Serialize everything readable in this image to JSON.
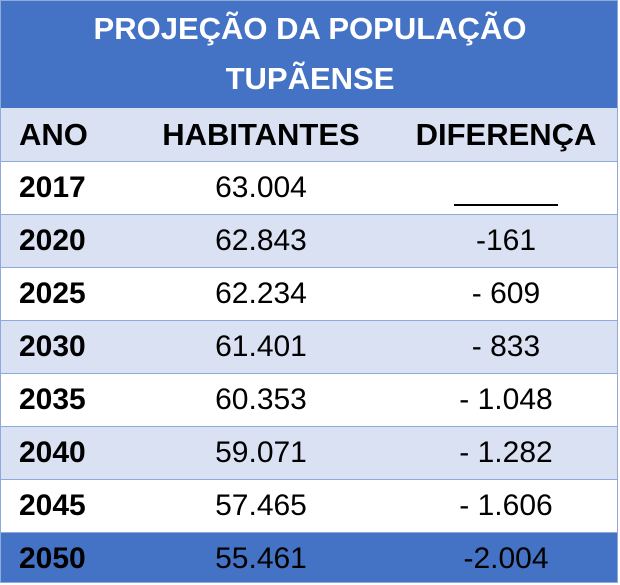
{
  "title": {
    "line1": "PROJEÇÃO DA POPULAÇÃO",
    "line2": "TUPÃENSE"
  },
  "headers": {
    "ano": "ANO",
    "habitantes": "HABITANTES",
    "diferenca": "DIFERENÇA"
  },
  "rows": [
    {
      "ano": "2017",
      "habitantes": "63.004",
      "diferenca": ""
    },
    {
      "ano": "2020",
      "habitantes": "62.843",
      "diferenca": "-161"
    },
    {
      "ano": "2025",
      "habitantes": "62.234",
      "diferenca": "- 609"
    },
    {
      "ano": "2030",
      "habitantes": "61.401",
      "diferenca": "- 833"
    },
    {
      "ano": "2035",
      "habitantes": "60.353",
      "diferenca": "- 1.048"
    },
    {
      "ano": "2040",
      "habitantes": "59.071",
      "diferenca": "- 1.282"
    },
    {
      "ano": "2045",
      "habitantes": "57.465",
      "diferenca": "- 1.606"
    },
    {
      "ano": "2050",
      "habitantes": "55.461",
      "diferenca": "-2.004"
    }
  ],
  "colors": {
    "title_bg": "#4472c4",
    "band_bg": "#d9e1f2",
    "border": "#8ea9db"
  }
}
